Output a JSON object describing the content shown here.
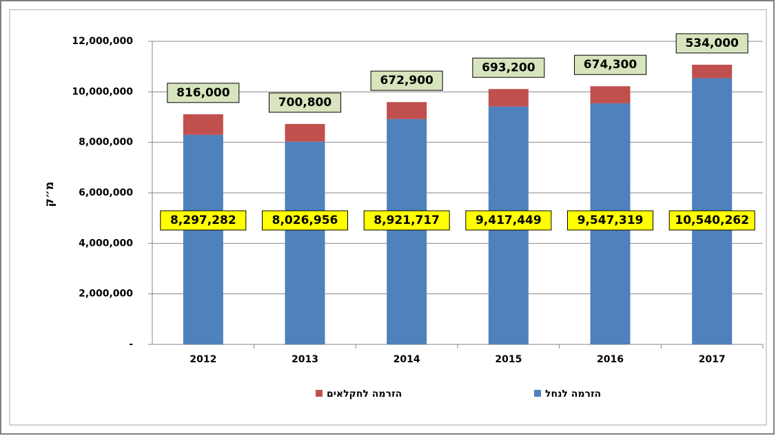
{
  "chart_data": {
    "type": "stacked_bar",
    "y_label": "מ״ק",
    "categories": [
      "2012",
      "2013",
      "2014",
      "2015",
      "2016",
      "2017"
    ],
    "series": [
      {
        "name": "הזרמה לנחל",
        "color": "#4f81bd",
        "values": [
          8297282,
          8026956,
          8921717,
          9417449,
          9547319,
          10540262
        ],
        "value_labels": [
          "8,297,282",
          "8,026,956",
          "8,921,717",
          "9,417,449",
          "9,547,319",
          "10,540,262"
        ]
      },
      {
        "name": "הזרמה לחקלאים",
        "color": "#c0504d",
        "values": [
          816000,
          700800,
          672900,
          693200,
          674300,
          534000
        ],
        "value_labels": [
          "816,000",
          "700,800",
          "672,900",
          "693,200",
          "674,300",
          "534,000"
        ]
      }
    ],
    "ylim": [
      0,
      12000000
    ],
    "yticks": [
      {
        "value": 0,
        "label": "-"
      },
      {
        "value": 2000000,
        "label": "2,000,000"
      },
      {
        "value": 4000000,
        "label": "4,000,000"
      },
      {
        "value": 6000000,
        "label": "6,000,000"
      },
      {
        "value": 8000000,
        "label": "8,000,000"
      },
      {
        "value": 10000000,
        "label": "10,000,000"
      },
      {
        "value": 12000000,
        "label": "12,000,000"
      }
    ],
    "grid": true
  }
}
